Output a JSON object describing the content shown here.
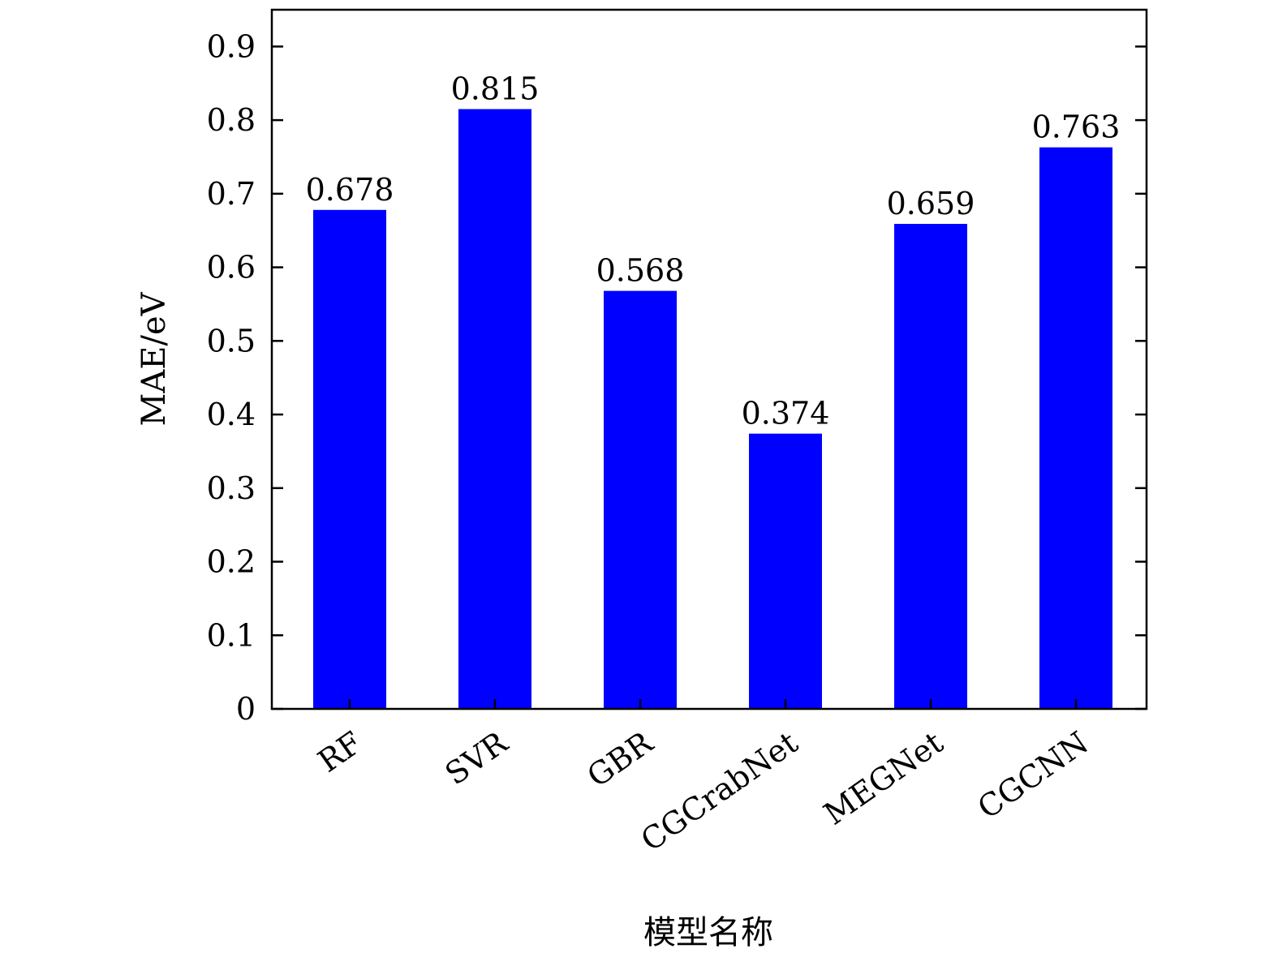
{
  "chart_data": {
    "type": "bar",
    "title": "",
    "xlabel": "模型名称",
    "ylabel": "MAE/eV",
    "categories": [
      "RF",
      "SVR",
      "GBR",
      "CGCrabNet",
      "MEGNet",
      "CGCNN"
    ],
    "values": [
      0.678,
      0.815,
      0.568,
      0.374,
      0.659,
      0.763
    ],
    "data_labels": [
      "0.678",
      "0.815",
      "0.568",
      "0.374",
      "0.659",
      "0.763"
    ],
    "ylim": [
      0,
      0.95
    ],
    "yticks": [
      0,
      0.1,
      0.2,
      0.3,
      0.4,
      0.5,
      0.6,
      0.7,
      0.8,
      0.9
    ],
    "ytick_labels": [
      "0",
      "0.1",
      "0.2",
      "0.3",
      "0.4",
      "0.5",
      "0.6",
      "0.7",
      "0.8",
      "0.9"
    ],
    "bar_color": "#0000ff",
    "grid": false,
    "legend": "none"
  }
}
